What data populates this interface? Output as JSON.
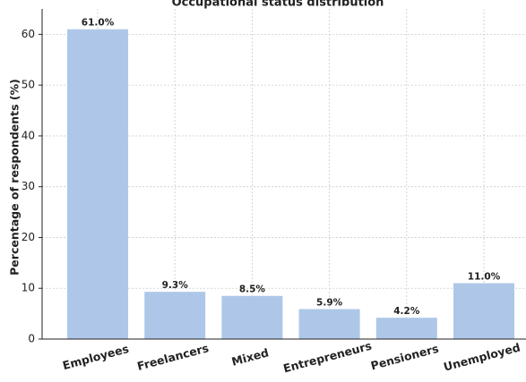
{
  "chart_data": {
    "type": "bar",
    "title": "Occupational status distribution",
    "ylabel": "Percentage of respondents (%)",
    "categories": [
      "Employees",
      "Freelancers",
      "Mixed",
      "Entrepreneurs",
      "Pensioners",
      "Unemployed"
    ],
    "values": [
      61.0,
      9.3,
      8.5,
      5.9,
      4.2,
      11.0
    ],
    "value_labels": [
      "61.0%",
      "9.3%",
      "8.5%",
      "5.9%",
      "4.2%",
      "11.0%"
    ],
    "color": "#aec7e8",
    "ylim": [
      0,
      65
    ],
    "yticks": [
      0,
      10,
      20,
      30,
      40,
      50,
      60
    ],
    "grid": true
  }
}
